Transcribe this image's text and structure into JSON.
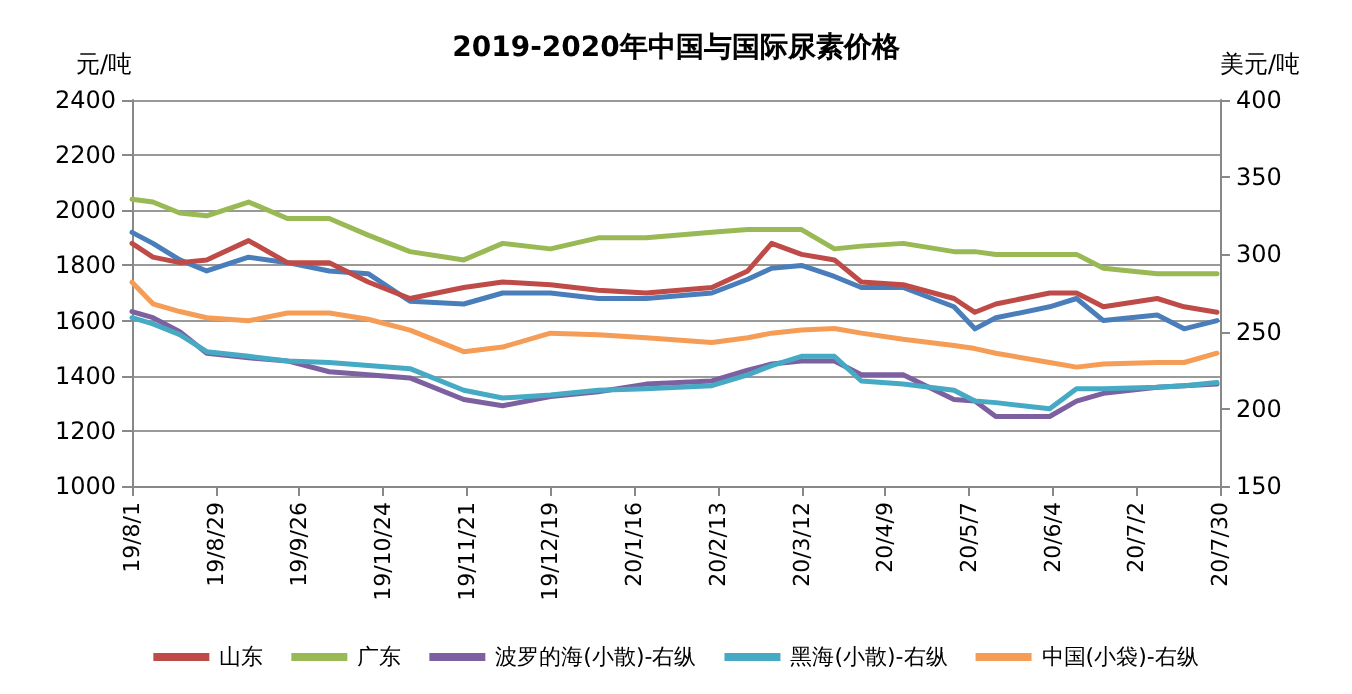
{
  "chart_data": {
    "type": "line",
    "title": "2019-2020年中国与国际尿素价格",
    "ylabel": "元/吨",
    "y2label": "美元/吨",
    "x": [
      "2019-08-01",
      "2019-08-08",
      "2019-08-17",
      "2019-08-26",
      "2019-09-09",
      "2019-09-22",
      "2019-10-06",
      "2019-10-19",
      "2019-11-02",
      "2019-11-20",
      "2019-12-03",
      "2019-12-19",
      "2020-01-04",
      "2020-01-20",
      "2020-02-11",
      "2020-02-23",
      "2020-03-02",
      "2020-03-12",
      "2020-03-23",
      "2020-04-01",
      "2020-04-15",
      "2020-05-02",
      "2020-05-09",
      "2020-05-16",
      "2020-06-03",
      "2020-06-12",
      "2020-06-21",
      "2020-07-09",
      "2020-07-18",
      "2020-07-29"
    ],
    "series": [
      {
        "color": "#4a7ebb",
        "values": [
          1920,
          1880,
          1820,
          1780,
          1830,
          1810,
          1780,
          1770,
          1670,
          1660,
          1700,
          1700,
          1680,
          1680,
          1700,
          1750,
          1790,
          1800,
          1760,
          1720,
          1720,
          1650,
          1570,
          1610,
          1650,
          1680,
          1600,
          1620,
          1570,
          1600
        ]
      },
      {
        "name": "山东",
        "color": "#be4b48",
        "values": [
          1880,
          1830,
          1810,
          1820,
          1890,
          1810,
          1810,
          1740,
          1680,
          1720,
          1740,
          1730,
          1710,
          1700,
          1720,
          1780,
          1880,
          1840,
          1820,
          1740,
          1730,
          1680,
          1630,
          1660,
          1700,
          1700,
          1650,
          1680,
          1650,
          1630
        ]
      },
      {
        "name": "广东",
        "color": "#98b954",
        "values": [
          2040,
          2030,
          1990,
          1980,
          2030,
          1970,
          1970,
          1910,
          1850,
          1820,
          1880,
          1860,
          1900,
          1900,
          1920,
          1930,
          1930,
          1930,
          1860,
          1870,
          1880,
          1850,
          1850,
          1840,
          1840,
          1840,
          1790,
          1770,
          1770,
          1770
        ]
      },
      {
        "name": "波罗的海(小散)-右纵",
        "color": "#7d60a0",
        "axis": "y2",
        "values": [
          263,
          259,
          250,
          236,
          233,
          231,
          224,
          222,
          220,
          206,
          202,
          208,
          211,
          216,
          218,
          225,
          229,
          231,
          231,
          222,
          222,
          206,
          205,
          195,
          195,
          205,
          210,
          214,
          215,
          216
        ]
      },
      {
        "name": "黑海(小散)-右纵",
        "color": "#46aac5",
        "axis": "y2",
        "values": [
          259,
          255,
          248,
          237,
          234,
          231,
          230,
          228,
          226,
          212,
          207,
          209,
          212,
          213,
          215,
          222,
          228,
          234,
          234,
          218,
          216,
          212,
          205,
          204,
          200,
          213,
          213,
          214,
          215,
          217
        ]
      },
      {
        "name": "中国(小袋)-右纵",
        "color": "#f59d56",
        "axis": "y2",
        "values": [
          282,
          268,
          263,
          259,
          257,
          262,
          262,
          258,
          251,
          237,
          240,
          249,
          248,
          246,
          243,
          246,
          249,
          251,
          252,
          249,
          245,
          241,
          239,
          236,
          230,
          227,
          229,
          230,
          230,
          236
        ]
      }
    ],
    "xlim": [
      "2019-08-01",
      "2020-07-30"
    ],
    "xticks": [
      {
        "value": "2019-08-01",
        "label": "19/8/1"
      },
      {
        "value": "2019-08-29",
        "label": "19/8/29"
      },
      {
        "value": "2019-09-26",
        "label": "19/9/26"
      },
      {
        "value": "2019-10-24",
        "label": "19/10/24"
      },
      {
        "value": "2019-11-21",
        "label": "19/11/21"
      },
      {
        "value": "2019-12-19",
        "label": "19/12/19"
      },
      {
        "value": "2020-01-16",
        "label": "20/1/16"
      },
      {
        "value": "2020-02-13",
        "label": "20/2/13"
      },
      {
        "value": "2020-03-12",
        "label": "20/3/12"
      },
      {
        "value": "2020-04-09",
        "label": "20/4/9"
      },
      {
        "value": "2020-05-07",
        "label": "20/5/7"
      },
      {
        "value": "2020-06-04",
        "label": "20/6/4"
      },
      {
        "value": "2020-07-02",
        "label": "20/7/2"
      },
      {
        "value": "2020-07-30",
        "label": "20/7/30"
      }
    ],
    "ylim": [
      1000,
      2400
    ],
    "yticks": [
      1000,
      1200,
      1400,
      1600,
      1800,
      2000,
      2200,
      2400
    ],
    "y2lim": [
      150,
      400
    ],
    "y2ticks": [
      150,
      200,
      250,
      300,
      350,
      400
    ],
    "grid": "y",
    "legend": "bottom",
    "marker": "none",
    "line_style": "solid"
  }
}
